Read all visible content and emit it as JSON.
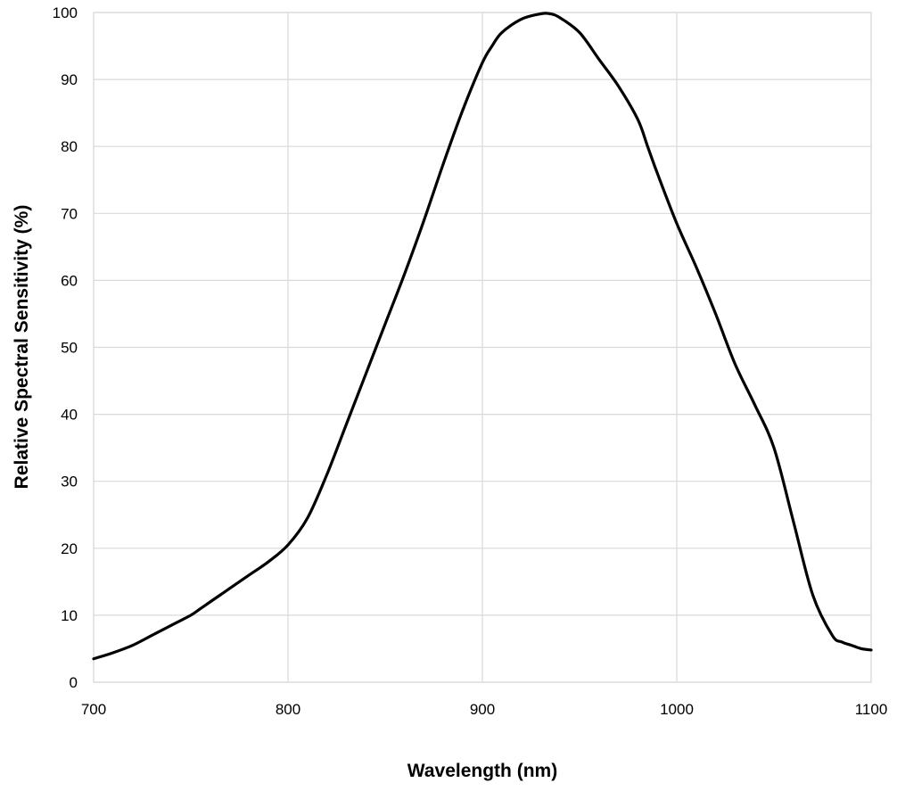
{
  "chart_data": {
    "type": "line",
    "xlabel": "Wavelength (nm)",
    "ylabel": "Relative Spectral Sensitivity (%)",
    "xlim": [
      700,
      1100
    ],
    "ylim": [
      0,
      100
    ],
    "x_ticks": [
      700,
      800,
      900,
      1000,
      1100
    ],
    "y_ticks": [
      0,
      10,
      20,
      30,
      40,
      50,
      60,
      70,
      80,
      90,
      100
    ],
    "grid": true,
    "legend": "none",
    "series": [
      {
        "color": "#000000",
        "x": [
          700,
          710,
          720,
          730,
          740,
          750,
          755,
          760,
          765,
          770,
          780,
          790,
          800,
          810,
          820,
          830,
          840,
          850,
          860,
          870,
          880,
          890,
          900,
          905,
          910,
          920,
          930,
          935,
          940,
          950,
          960,
          970,
          980,
          985,
          990,
          1000,
          1010,
          1020,
          1030,
          1040,
          1050,
          1060,
          1070,
          1080,
          1085,
          1090,
          1095,
          1100
        ],
        "y": [
          3.5,
          4.4,
          5.5,
          7.0,
          8.5,
          10.0,
          11.0,
          12.0,
          13.0,
          14.0,
          16.0,
          18.0,
          20.5,
          24.5,
          31.0,
          38.5,
          46.0,
          53.5,
          61.0,
          69.0,
          77.5,
          85.5,
          92.5,
          95.0,
          97.0,
          99.0,
          99.8,
          99.8,
          99.2,
          97.0,
          93.0,
          89.0,
          84.0,
          80.0,
          76.0,
          68.5,
          62.0,
          55.0,
          47.5,
          41.5,
          35.0,
          24.0,
          13.0,
          7.0,
          6.0,
          5.5,
          5.0,
          4.8
        ]
      }
    ]
  }
}
